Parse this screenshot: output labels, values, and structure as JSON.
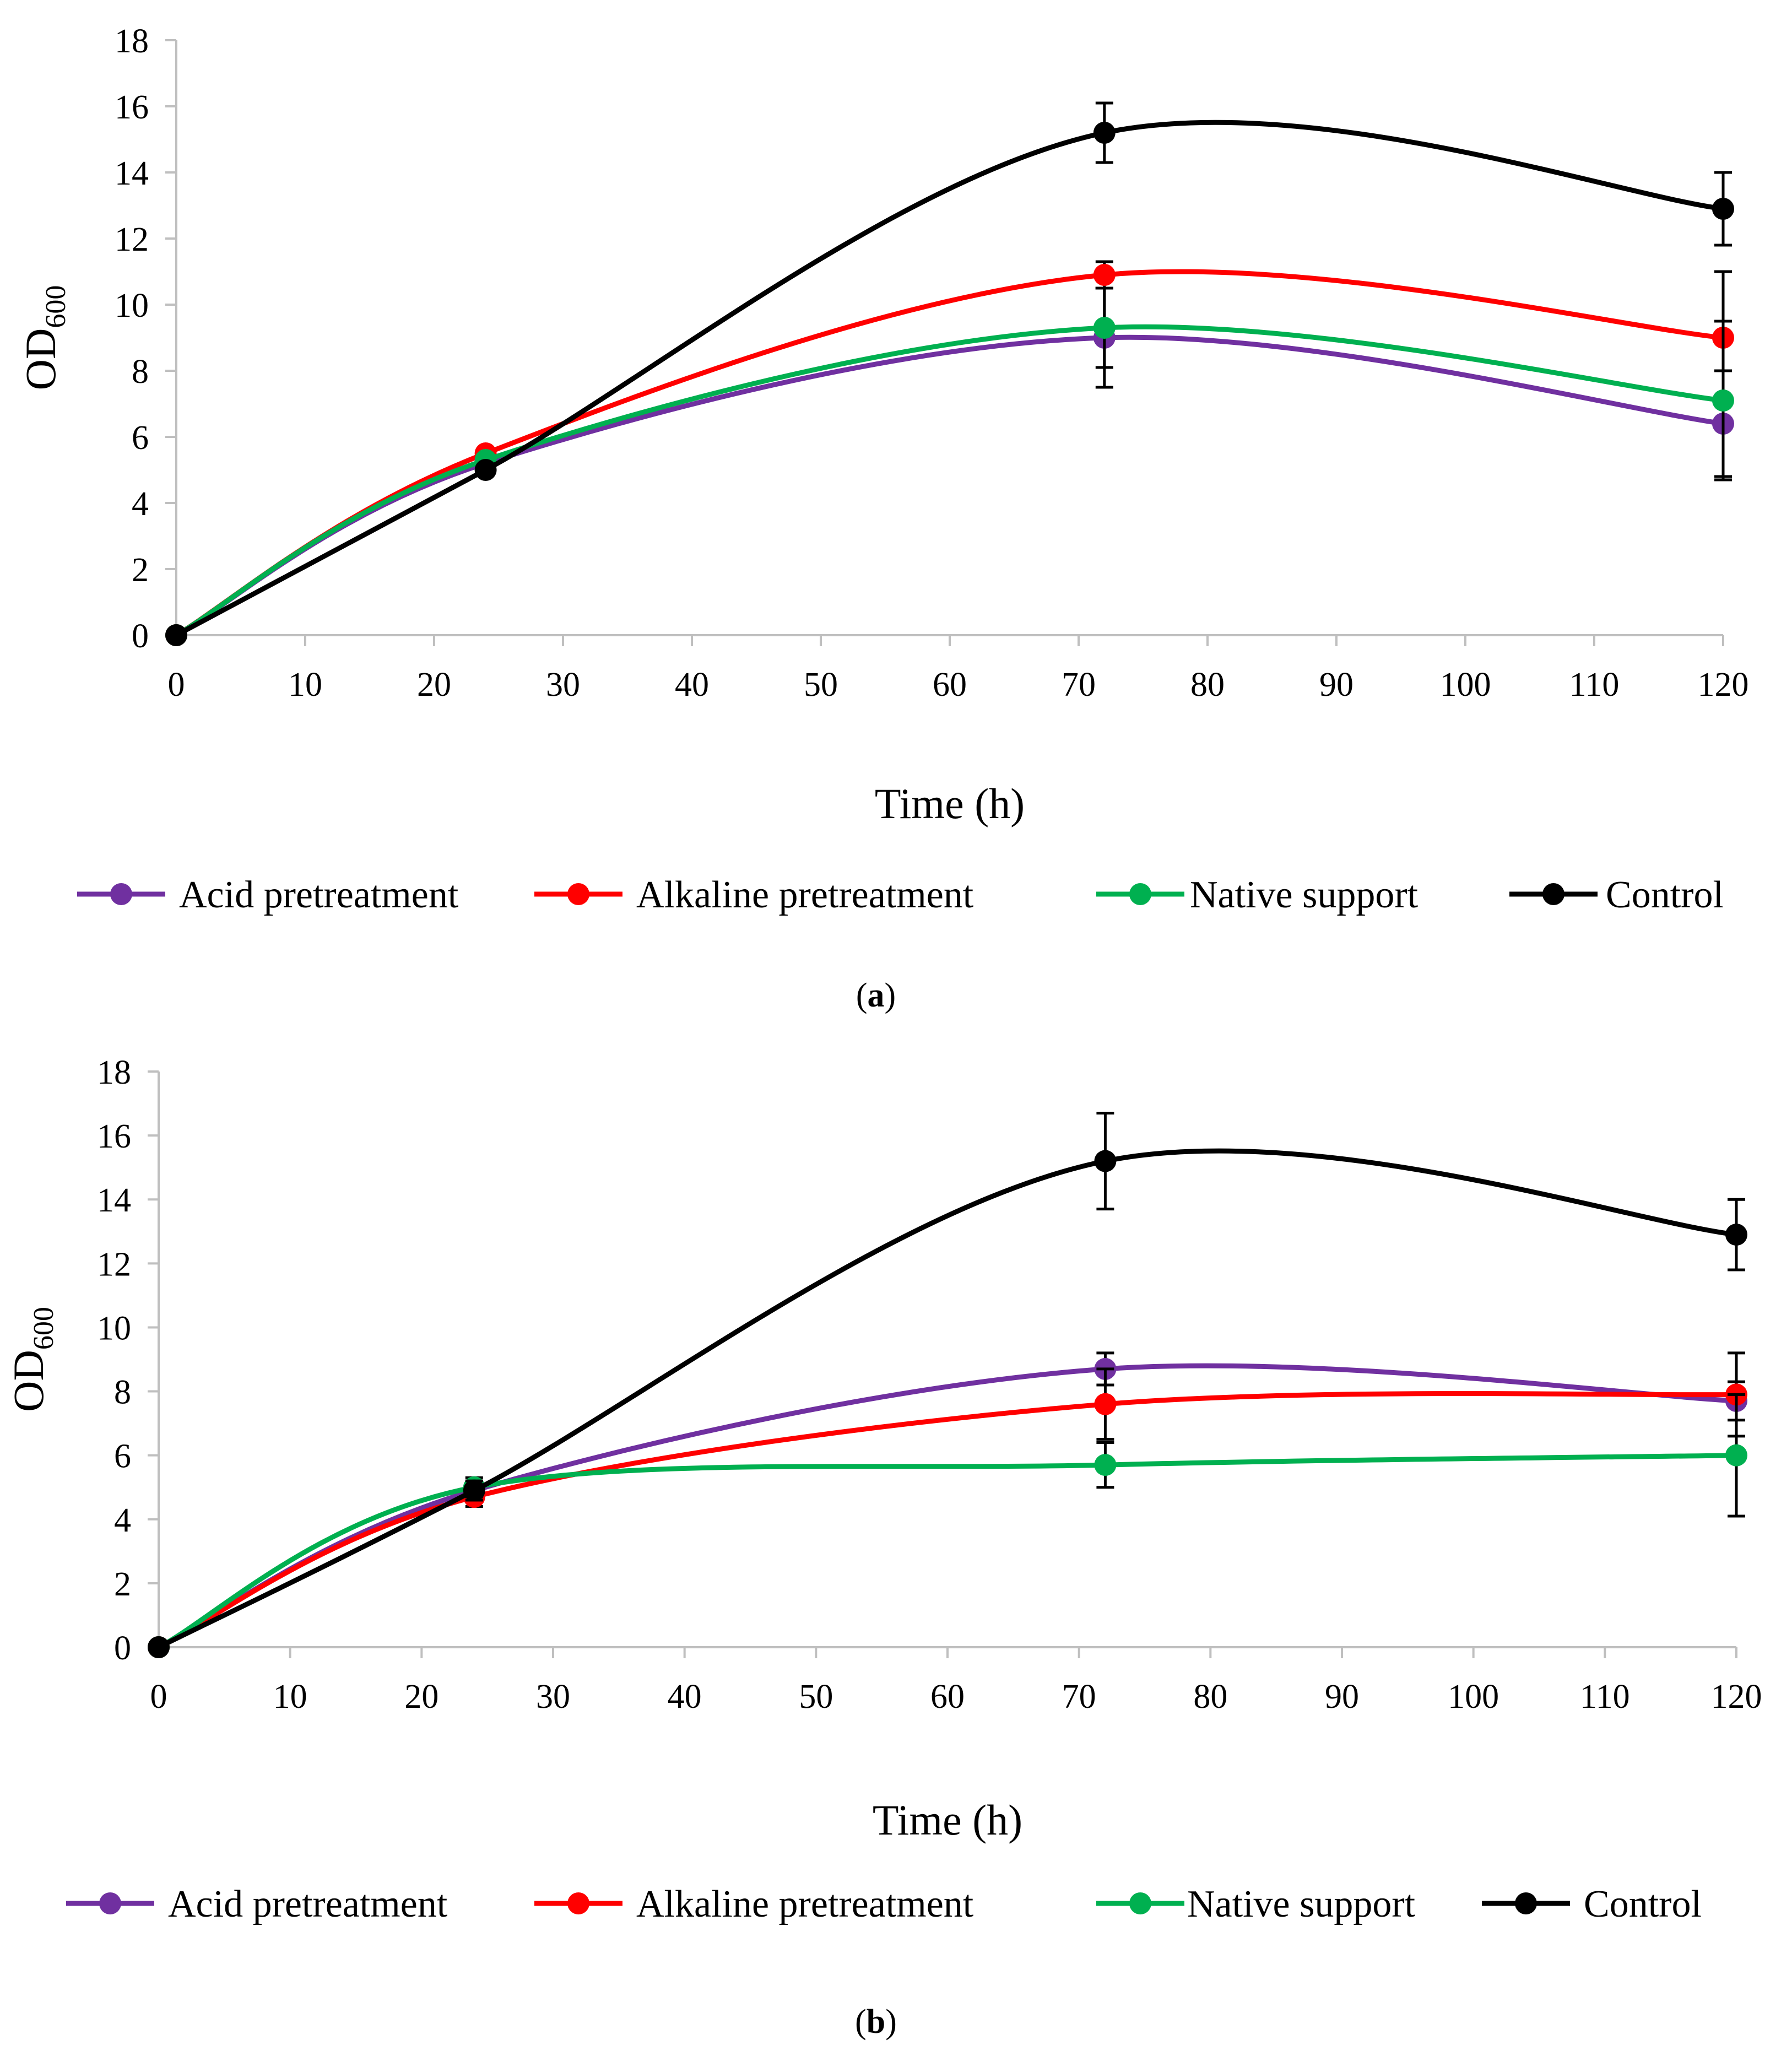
{
  "figure_captions": [
    {
      "open": "(",
      "letter": "a",
      "close": ")"
    },
    {
      "open": "(",
      "letter": "b",
      "close": ")"
    }
  ],
  "chart_data": [
    {
      "type": "line",
      "panel": "a",
      "title": "",
      "xlabel": "Time (h)",
      "ylabel_main": "OD",
      "ylabel_sub": "600",
      "xlim": [
        0,
        120
      ],
      "ylim": [
        0,
        18
      ],
      "xticks": [
        0,
        10,
        20,
        30,
        40,
        50,
        60,
        70,
        80,
        90,
        100,
        110,
        120
      ],
      "yticks": [
        0,
        2,
        4,
        6,
        8,
        10,
        12,
        14,
        16,
        18
      ],
      "grid": false,
      "legend_position": "bottom",
      "x": [
        0,
        24,
        72,
        120
      ],
      "series": [
        {
          "name": "Acid pretreatment",
          "color": "#7030a0",
          "values": [
            0,
            5.2,
            9.0,
            6.4
          ],
          "errors": [
            0,
            0,
            1.5,
            1.6
          ]
        },
        {
          "name": "Alkaline pretreatment",
          "color": "#ff0000",
          "values": [
            0,
            5.5,
            10.9,
            9.0
          ],
          "errors": [
            0,
            0,
            0.4,
            2.0
          ]
        },
        {
          "name": "Native support",
          "color": "#00b050",
          "values": [
            0,
            5.3,
            9.3,
            7.1
          ],
          "errors": [
            0,
            0,
            1.2,
            2.4
          ]
        },
        {
          "name": "Control",
          "color": "#000000",
          "values": [
            0,
            5.0,
            15.2,
            12.9
          ],
          "errors": [
            0,
            0,
            0.9,
            1.1
          ]
        }
      ]
    },
    {
      "type": "line",
      "panel": "b",
      "title": "",
      "xlabel": "Time (h)",
      "ylabel_main": "OD",
      "ylabel_sub": "600",
      "xlim": [
        0,
        120
      ],
      "ylim": [
        0,
        18
      ],
      "xticks": [
        0,
        10,
        20,
        30,
        40,
        50,
        60,
        70,
        80,
        90,
        100,
        110,
        120
      ],
      "yticks": [
        0,
        2,
        4,
        6,
        8,
        10,
        12,
        14,
        16,
        18
      ],
      "grid": false,
      "legend_position": "bottom",
      "x": [
        0,
        24,
        72,
        120
      ],
      "series": [
        {
          "name": "Acid pretreatment",
          "color": "#7030a0",
          "values": [
            0,
            4.9,
            8.7,
            7.7
          ],
          "errors": [
            0,
            0.3,
            0.5,
            0.6
          ]
        },
        {
          "name": "Alkaline pretreatment",
          "color": "#ff0000",
          "values": [
            0,
            4.7,
            7.6,
            7.9
          ],
          "errors": [
            0,
            0.3,
            1.1,
            1.3
          ]
        },
        {
          "name": "Native support",
          "color": "#00b050",
          "values": [
            0,
            5.0,
            5.7,
            6.0
          ],
          "errors": [
            0,
            0.3,
            0.7,
            1.9
          ]
        },
        {
          "name": "Control",
          "color": "#000000",
          "values": [
            0,
            4.9,
            15.2,
            12.9
          ],
          "errors": [
            0,
            0.3,
            1.5,
            1.1
          ]
        }
      ]
    }
  ]
}
